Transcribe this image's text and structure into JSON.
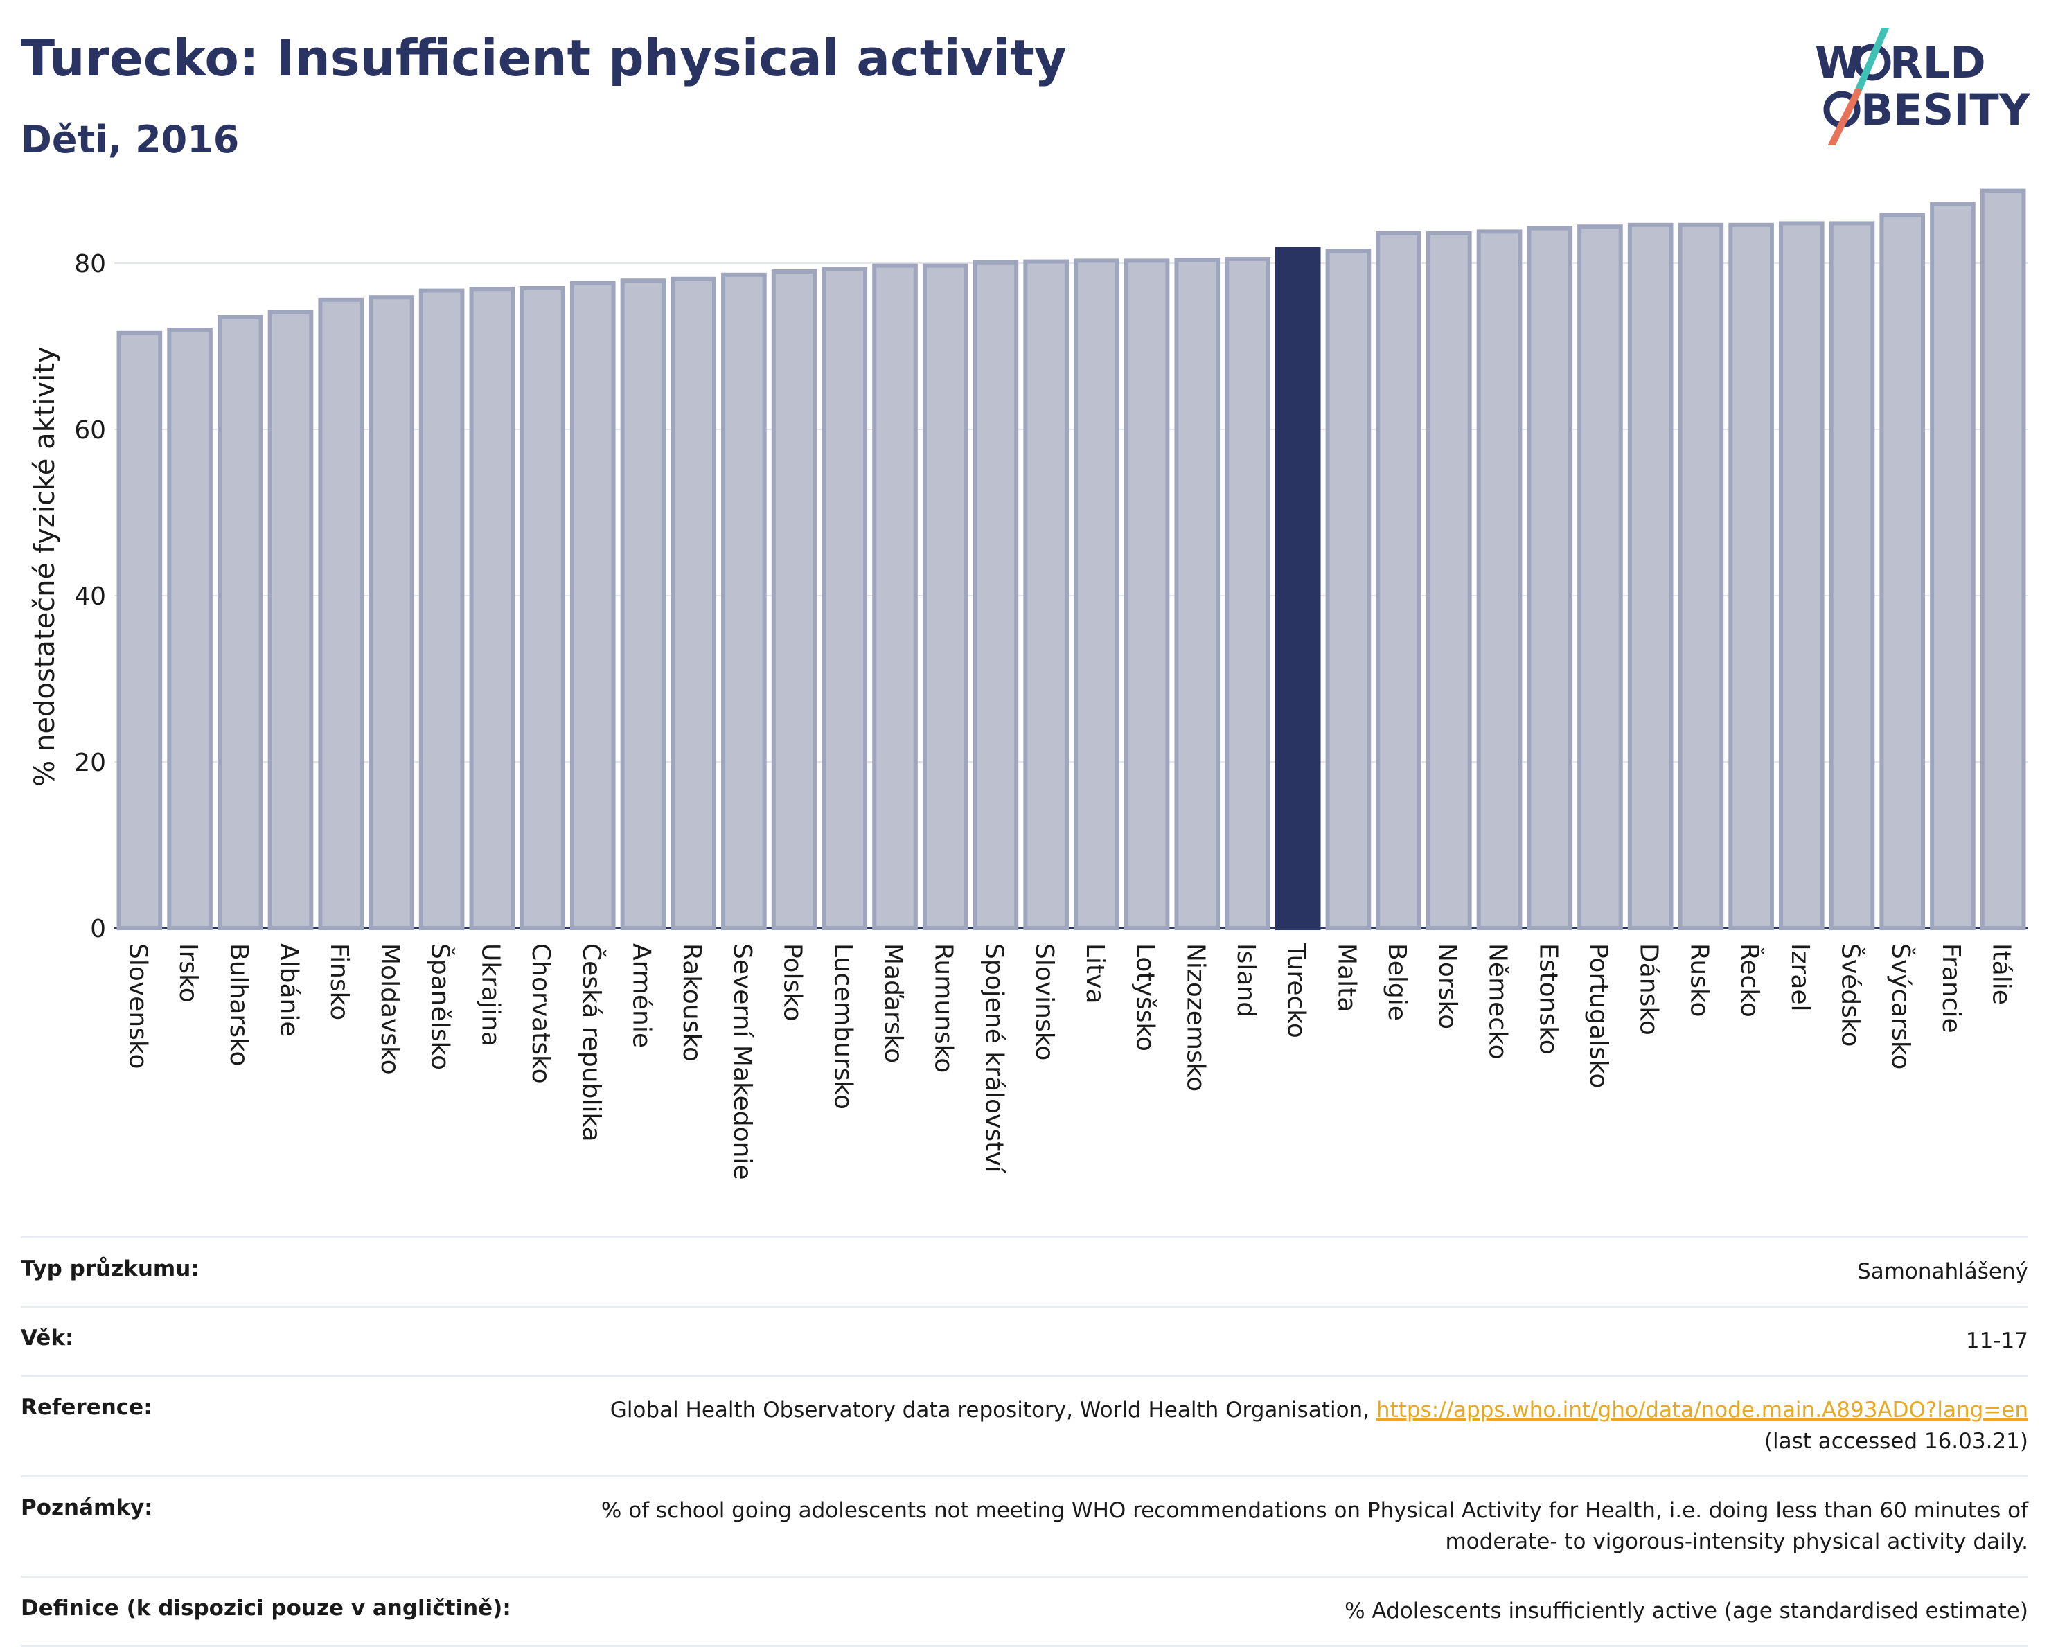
{
  "header": {
    "title": "Turecko: Insufficient physical activity",
    "subtitle": "Děti, 2016",
    "logo_text": "WORLD OBESITY"
  },
  "colors": {
    "bar": "#bcc0cf",
    "bar_stroke": "#9fa5bd",
    "highlight": "#2a3462",
    "text": "#2a3462",
    "link": "#e8a820",
    "logo_teal": "#3fc1b6",
    "logo_coral": "#e8735a"
  },
  "chart_data": {
    "type": "bar",
    "ylabel": "% nedostatečné fyzické aktivity",
    "xlabel": "",
    "ylim": [
      0,
      90
    ],
    "yticks": [
      0,
      20,
      40,
      60,
      80
    ],
    "grid": true,
    "highlight": "Turecko",
    "categories": [
      "Slovensko",
      "Irsko",
      "Bulharsko",
      "Albánie",
      "Finsko",
      "Moldavsko",
      "Španělsko",
      "Ukrajina",
      "Chorvatsko",
      "Česká republika",
      "Arménie",
      "Rakousko",
      "Severní Makedonie",
      "Polsko",
      "Lucembursko",
      "Maďarsko",
      "Rumunsko",
      "Spojené království",
      "Slovinsko",
      "Litva",
      "Lotyšsko",
      "Nizozemsko",
      "Island",
      "Turecko",
      "Malta",
      "Belgie",
      "Norsko",
      "Německo",
      "Estonsko",
      "Portugalsko",
      "Dánsko",
      "Rusko",
      "Řecko",
      "Izrael",
      "Švédsko",
      "Švýcarsko",
      "Francie",
      "Itálie"
    ],
    "values": [
      71.6,
      72.0,
      73.5,
      74.1,
      75.6,
      75.9,
      76.7,
      76.9,
      77.0,
      77.6,
      77.9,
      78.1,
      78.6,
      79.0,
      79.3,
      79.7,
      79.7,
      80.1,
      80.2,
      80.3,
      80.3,
      80.4,
      80.5,
      81.7,
      81.5,
      83.6,
      83.6,
      83.8,
      84.2,
      84.4,
      84.6,
      84.6,
      84.6,
      84.8,
      84.8,
      85.8,
      87.1,
      88.7
    ]
  },
  "table": {
    "rows": [
      {
        "key": "Typ průzkumu:",
        "value": "Samonahlášený"
      },
      {
        "key": "Věk:",
        "value": "11-17"
      },
      {
        "key": "Reference:",
        "value": "Global Health Observatory data repository, World Health Organisation, ",
        "link": "https://apps.who.int/gho/data/node.main.A893ADO?lang=en",
        "value2": "(last accessed 16.03.21)"
      },
      {
        "key": "Poznámky:",
        "value": "% of school going adolescents not meeting WHO recommendations on Physical Activity for Health, i.e. doing less than 60 minutes of",
        "value2": "moderate- to vigorous-intensity physical activity daily."
      },
      {
        "key": "Definice (k dispozici pouze v angličtině):",
        "value": "% Adolescents insufficiently active (age standardised estimate)"
      }
    ]
  }
}
